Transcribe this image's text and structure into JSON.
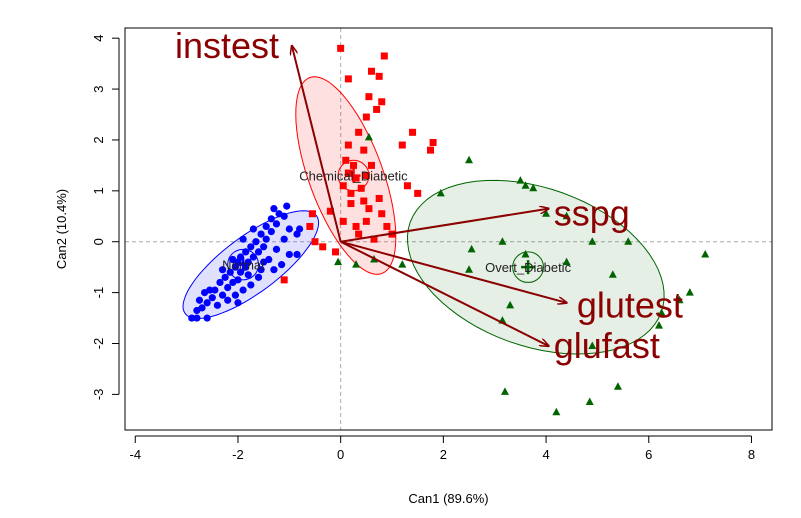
{
  "chart_data": {
    "type": "scatter",
    "title": "",
    "xlabel": "Can1 (89.6%)",
    "ylabel": "Can2 (10.4%)",
    "xlim": [
      -4.2,
      8.4
    ],
    "ylim": [
      -3.7,
      4.2
    ],
    "x_ticks": [
      -4,
      -2,
      0,
      2,
      4,
      6,
      8
    ],
    "y_ticks": [
      -3,
      -2,
      -1,
      0,
      1,
      2,
      3,
      4
    ],
    "x_tick_labels": [
      "-4",
      "-2",
      "0",
      "2",
      "4",
      "6",
      "8"
    ],
    "y_tick_labels": [
      "-3",
      "-2",
      "-1",
      "0",
      "1",
      "2",
      "3",
      "4"
    ],
    "reference_lines": {
      "x": 0,
      "y": 0,
      "style": "dashed",
      "color": "#aaaaaa"
    },
    "groups": [
      {
        "label": "Normal",
        "color": "#0000ff",
        "marker": "circle",
        "centroid": [
          -1.9,
          -0.45
        ],
        "ellipse": {
          "cx": -1.75,
          "cy": -0.45,
          "rx": 1.6,
          "ry": 0.55,
          "angle_deg": 37
        },
        "points": [
          [
            -2.9,
            -1.5
          ],
          [
            -2.8,
            -1.5
          ],
          [
            -2.6,
            -1.5
          ],
          [
            -2.8,
            -1.35
          ],
          [
            -2.7,
            -1.3
          ],
          [
            -2.6,
            -1.2
          ],
          [
            -2.75,
            -1.15
          ],
          [
            -2.5,
            -1.1
          ],
          [
            -2.4,
            -1.25
          ],
          [
            -2.3,
            -1.05
          ],
          [
            -2.45,
            -0.95
          ],
          [
            -2.2,
            -0.9
          ],
          [
            -2.35,
            -0.8
          ],
          [
            -2.1,
            -0.8
          ],
          [
            -2.25,
            -0.7
          ],
          [
            -2.0,
            -0.75
          ],
          [
            -2.15,
            -0.6
          ],
          [
            -1.95,
            -0.6
          ],
          [
            -2.05,
            -0.5
          ],
          [
            -1.85,
            -0.5
          ],
          [
            -2.0,
            -0.4
          ],
          [
            -1.8,
            -0.4
          ],
          [
            -1.95,
            -0.3
          ],
          [
            -1.7,
            -0.3
          ],
          [
            -1.85,
            -0.2
          ],
          [
            -1.6,
            -0.2
          ],
          [
            -1.75,
            -0.1
          ],
          [
            -1.5,
            -0.1
          ],
          [
            -1.65,
            0.0
          ],
          [
            -1.45,
            0.05
          ],
          [
            -1.55,
            0.15
          ],
          [
            -1.35,
            0.2
          ],
          [
            -1.45,
            0.3
          ],
          [
            -1.25,
            0.35
          ],
          [
            -1.35,
            0.45
          ],
          [
            -1.2,
            0.55
          ],
          [
            -1.3,
            0.65
          ],
          [
            -1.1,
            0.5
          ],
          [
            -1.0,
            -0.25
          ],
          [
            -1.15,
            -0.45
          ],
          [
            -1.6,
            -0.7
          ],
          [
            -1.75,
            -0.85
          ],
          [
            -1.9,
            -0.95
          ],
          [
            -2.05,
            -1.05
          ],
          [
            -2.2,
            -1.15
          ],
          [
            -1.55,
            -0.55
          ],
          [
            -1.4,
            -0.35
          ],
          [
            -1.25,
            -0.15
          ],
          [
            -1.1,
            0.05
          ],
          [
            -1.0,
            0.25
          ],
          [
            -0.85,
            0.15
          ],
          [
            -2.55,
            -0.95
          ],
          [
            -2.3,
            -0.55
          ],
          [
            -2.1,
            -0.35
          ],
          [
            -1.7,
            0.25
          ],
          [
            -1.9,
            0.05
          ],
          [
            -1.3,
            -0.55
          ],
          [
            -1.05,
            0.7
          ],
          [
            -2.65,
            -1.0
          ],
          [
            -2.0,
            -1.2
          ],
          [
            -1.8,
            -0.65
          ],
          [
            -1.5,
            -0.4
          ],
          [
            -0.85,
            -0.25
          ],
          [
            -0.8,
            0.25
          ]
        ]
      },
      {
        "label": "Chemical_Diabetic",
        "color": "#ff0000",
        "marker": "square",
        "centroid": [
          0.25,
          1.3
        ],
        "ellipse": {
          "cx": 0.1,
          "cy": 1.3,
          "rx": 2.05,
          "ry": 0.72,
          "angle_deg": -70
        },
        "points": [
          [
            0.0,
            3.8
          ],
          [
            0.85,
            3.65
          ],
          [
            0.6,
            3.35
          ],
          [
            0.15,
            3.2
          ],
          [
            0.75,
            3.25
          ],
          [
            0.55,
            2.85
          ],
          [
            0.8,
            2.75
          ],
          [
            0.7,
            2.6
          ],
          [
            0.5,
            2.45
          ],
          [
            0.35,
            2.15
          ],
          [
            1.4,
            2.15
          ],
          [
            1.8,
            1.95
          ],
          [
            1.75,
            1.8
          ],
          [
            1.2,
            1.9
          ],
          [
            0.15,
            1.9
          ],
          [
            0.45,
            1.8
          ],
          [
            0.1,
            1.6
          ],
          [
            0.6,
            1.5
          ],
          [
            0.25,
            1.5
          ],
          [
            0.3,
            1.25
          ],
          [
            0.5,
            1.3
          ],
          [
            0.15,
            1.35
          ],
          [
            0.05,
            1.1
          ],
          [
            0.4,
            1.05
          ],
          [
            0.2,
            0.95
          ],
          [
            0.75,
            0.85
          ],
          [
            0.45,
            0.8
          ],
          [
            0.2,
            0.75
          ],
          [
            1.3,
            1.1
          ],
          [
            1.5,
            0.95
          ],
          [
            0.55,
            0.65
          ],
          [
            0.8,
            0.55
          ],
          [
            0.5,
            0.4
          ],
          [
            0.3,
            0.3
          ],
          [
            0.35,
            0.15
          ],
          [
            0.05,
            0.4
          ],
          [
            -0.55,
            0.55
          ],
          [
            -0.6,
            0.3
          ],
          [
            -0.5,
            0.0
          ],
          [
            -0.35,
            -0.1
          ],
          [
            -0.1,
            -0.2
          ],
          [
            -0.2,
            0.6
          ],
          [
            0.9,
            0.3
          ],
          [
            -1.1,
            -0.75
          ],
          [
            1.0,
            0.15
          ],
          [
            0.65,
            0.05
          ]
        ]
      },
      {
        "label": "Overt_Diabetic",
        "color": "#006400",
        "marker": "triangle",
        "centroid": [
          3.65,
          -0.5
        ],
        "ellipse": {
          "cx": 3.8,
          "cy": -0.5,
          "rx": 2.6,
          "ry": 1.55,
          "angle_deg": -20
        },
        "points": [
          [
            0.55,
            2.05
          ],
          [
            2.5,
            1.6
          ],
          [
            3.5,
            1.2
          ],
          [
            3.6,
            1.1
          ],
          [
            3.75,
            1.05
          ],
          [
            1.95,
            0.95
          ],
          [
            4.0,
            0.55
          ],
          [
            4.4,
            0.5
          ],
          [
            3.15,
            0.0
          ],
          [
            4.9,
            0.0
          ],
          [
            5.6,
            0.0
          ],
          [
            7.1,
            -0.25
          ],
          [
            2.55,
            -0.15
          ],
          [
            3.6,
            -0.25
          ],
          [
            4.4,
            -0.4
          ],
          [
            2.5,
            -0.55
          ],
          [
            5.3,
            -0.65
          ],
          [
            6.8,
            -1.0
          ],
          [
            6.6,
            -1.15
          ],
          [
            3.3,
            -1.25
          ],
          [
            3.15,
            -1.55
          ],
          [
            6.25,
            -1.4
          ],
          [
            4.9,
            -2.05
          ],
          [
            3.2,
            -2.95
          ],
          [
            4.85,
            -3.15
          ],
          [
            5.4,
            -2.85
          ],
          [
            4.2,
            -3.35
          ],
          [
            0.3,
            -0.45
          ],
          [
            0.65,
            -0.35
          ],
          [
            1.2,
            -0.45
          ],
          [
            -0.05,
            -0.4
          ],
          [
            6.2,
            -1.65
          ]
        ]
      }
    ],
    "vectors": [
      {
        "name": "instest",
        "end": [
          -0.95,
          3.85
        ],
        "label_pos": [
          -1.2,
          3.85
        ],
        "anchor": "end"
      },
      {
        "name": "sspg",
        "end": [
          4.05,
          0.65
        ],
        "label_pos": [
          4.15,
          0.55
        ],
        "anchor": "start"
      },
      {
        "name": "glutest",
        "end": [
          4.4,
          -1.2
        ],
        "label_pos": [
          4.6,
          -1.25
        ],
        "anchor": "start"
      },
      {
        "name": "glufast",
        "end": [
          4.05,
          -2.05
        ],
        "label_pos": [
          4.15,
          -2.05
        ],
        "anchor": "start"
      }
    ],
    "vector_color": "#8b0000",
    "grid": false,
    "legend": "none"
  }
}
